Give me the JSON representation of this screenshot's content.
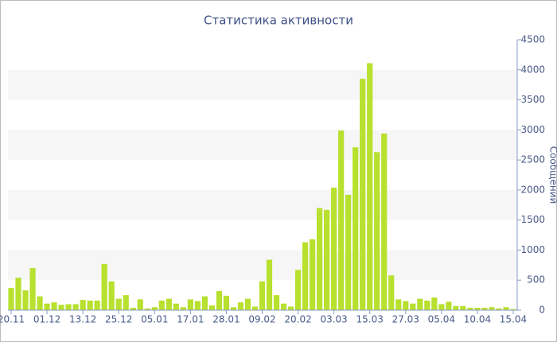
{
  "chart_data": {
    "type": "bar",
    "title": "Статистика активности",
    "y_label": "Сообщений",
    "categories": [
      "20.11",
      null,
      null,
      null,
      null,
      "01.12",
      null,
      null,
      null,
      null,
      "13.12",
      null,
      null,
      null,
      null,
      "25.12",
      null,
      null,
      null,
      null,
      "05.01",
      null,
      null,
      null,
      null,
      "17.01",
      null,
      null,
      null,
      null,
      "28.01",
      null,
      null,
      null,
      null,
      "09.02",
      null,
      null,
      null,
      null,
      "20.02",
      null,
      null,
      null,
      null,
      "03.03",
      null,
      null,
      null,
      null,
      "15.03",
      null,
      null,
      null,
      null,
      "27.03",
      null,
      null,
      null,
      null,
      "05.04",
      null,
      null,
      null,
      null,
      "10.04",
      null,
      null,
      null,
      null,
      "15.04"
    ],
    "values": [
      370,
      540,
      330,
      700,
      230,
      110,
      130,
      90,
      100,
      100,
      170,
      160,
      160,
      770,
      480,
      190,
      250,
      40,
      180,
      30,
      50,
      160,
      190,
      110,
      50,
      180,
      150,
      230,
      80,
      320,
      240,
      50,
      130,
      190,
      60,
      480,
      840,
      250,
      110,
      60,
      670,
      1130,
      1180,
      1700,
      1670,
      2040,
      2990,
      1920,
      2710,
      3850,
      4110,
      2630,
      2940,
      580,
      180,
      150,
      110,
      190,
      160,
      210,
      100,
      140,
      70,
      70,
      40,
      40,
      40,
      50,
      30,
      50,
      20
    ],
    "color": "#b8e02e",
    "ylim": [
      0,
      4500
    ],
    "yticks": [
      0,
      500,
      1000,
      1500,
      2000,
      2500,
      3000,
      3500,
      4000,
      4500
    ],
    "grid": true,
    "y_axis_side": "right"
  }
}
